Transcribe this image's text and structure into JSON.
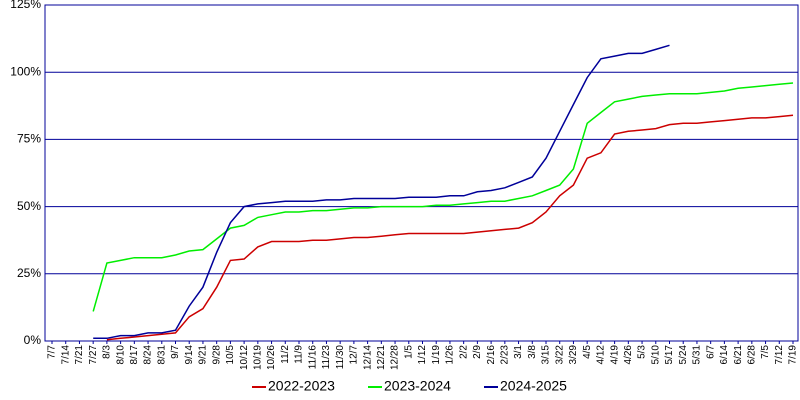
{
  "chart_data": {
    "type": "line",
    "categories": [
      "7/7",
      "7/14",
      "7/21",
      "7/27",
      "8/3",
      "8/10",
      "8/17",
      "8/24",
      "8/31",
      "9/7",
      "9/14",
      "9/21",
      "9/28",
      "10/5",
      "10/12",
      "10/19",
      "10/26",
      "11/2",
      "11/9",
      "11/16",
      "11/23",
      "11/30",
      "12/7",
      "12/14",
      "12/21",
      "12/28",
      "1/5",
      "1/12",
      "1/19",
      "1/26",
      "2/2",
      "2/9",
      "2/16",
      "2/23",
      "3/1",
      "3/8",
      "3/15",
      "3/22",
      "3/29",
      "4/5",
      "4/12",
      "4/19",
      "4/26",
      "5/3",
      "5/10",
      "5/17",
      "5/24",
      "5/31",
      "6/7",
      "6/14",
      "6/21",
      "6/28",
      "7/5",
      "7/12",
      "7/19"
    ],
    "series": [
      {
        "name": "2022-2023",
        "color": "#cc0000",
        "values": [
          null,
          null,
          null,
          null,
          0.5,
          1,
          1.5,
          2,
          2.5,
          3,
          9,
          12,
          20,
          30,
          30.5,
          35,
          37,
          37,
          37,
          37.5,
          37.5,
          38,
          38.5,
          38.5,
          39,
          39.5,
          40,
          40,
          40,
          40,
          40,
          40.5,
          41,
          41.5,
          42,
          44,
          48,
          54,
          58,
          68,
          70,
          77,
          78,
          78.5,
          79,
          80.5,
          81,
          81,
          81.5,
          82,
          82.5,
          83,
          83,
          83.5,
          84
        ]
      },
      {
        "name": "2023-2024",
        "color": "#00ee00",
        "values": [
          null,
          null,
          null,
          11,
          29,
          30,
          31,
          31,
          31,
          32,
          33.5,
          34,
          38,
          42,
          43,
          46,
          47,
          48,
          48,
          48.5,
          48.5,
          49,
          49.5,
          49.5,
          50,
          50,
          50,
          50,
          50.5,
          50.5,
          51,
          51.5,
          52,
          52,
          53,
          54,
          56,
          58,
          64,
          81,
          85,
          89,
          90,
          91,
          91.5,
          92,
          92,
          92,
          92.5,
          93,
          94,
          94.5,
          95,
          95.5,
          96
        ]
      },
      {
        "name": "2024-2025",
        "color": "#000099",
        "values": [
          null,
          null,
          null,
          1,
          1,
          2,
          2,
          3,
          3,
          4,
          13,
          20,
          33,
          44,
          50,
          51,
          51.5,
          52,
          52,
          52,
          52.5,
          52.5,
          53,
          53,
          53,
          53,
          53.5,
          53.5,
          53.5,
          54,
          54,
          55.5,
          56,
          57,
          59,
          61,
          68,
          78,
          88,
          98,
          105,
          106,
          107,
          107,
          108.5,
          110,
          null,
          null,
          null,
          null,
          null,
          null,
          null,
          null,
          null
        ]
      }
    ],
    "ylim": [
      0,
      125
    ],
    "yticks": [
      {
        "value": 0,
        "label": "0%"
      },
      {
        "value": 25,
        "label": "25%"
      },
      {
        "value": 50,
        "label": "50%"
      },
      {
        "value": 75,
        "label": "75%"
      },
      {
        "value": 100,
        "label": "100%"
      },
      {
        "value": 125,
        "label": "125%"
      }
    ],
    "grid": true,
    "legend": "bottom"
  }
}
